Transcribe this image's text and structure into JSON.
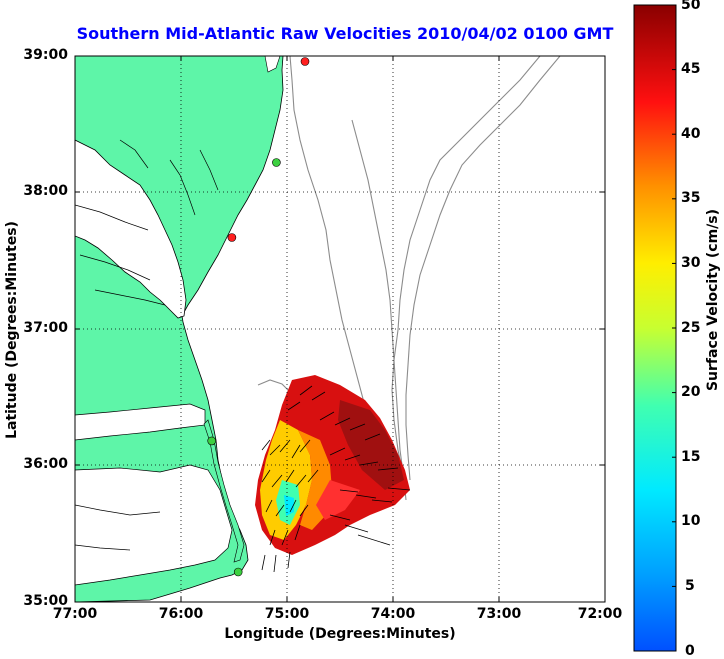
{
  "title": "Southern Mid-Atlantic Raw Velocities 2010/04/02 0100 GMT",
  "axes": {
    "xlabel": "Longitude (Degrees:Minutes)",
    "ylabel": "Latitude (Degrees:Minutes)",
    "x_ticks": [
      "77:00",
      "76:00",
      "75:00",
      "74:00",
      "73:00",
      "72:00"
    ],
    "y_ticks": [
      "39:00",
      "38:00",
      "37:00",
      "36:00",
      "35:00"
    ],
    "xlim": [
      -77,
      -72
    ],
    "ylim": [
      35,
      39
    ],
    "grid": true
  },
  "colorbar": {
    "label": "Surface Velocity (cm/s)",
    "ticks": [
      "50",
      "45",
      "40",
      "35",
      "30",
      "25",
      "20",
      "15",
      "10",
      "5",
      "0"
    ],
    "range": [
      0,
      50
    ],
    "colormap": "jet"
  },
  "colors": {
    "land": "#5ef5a8",
    "title": "#0000ff",
    "station_active": "#3cd040",
    "station_inactive": "#ff2020",
    "bathymetry": "#8c8c8c"
  },
  "stations": [
    {
      "lon": -74.83,
      "lat": 38.96,
      "status": "inactive"
    },
    {
      "lon": -75.1,
      "lat": 38.22,
      "status": "active"
    },
    {
      "lon": -75.52,
      "lat": 37.67,
      "status": "inactive"
    },
    {
      "lon": -75.71,
      "lat": 36.18,
      "status": "active"
    },
    {
      "lon": -75.46,
      "lat": 35.22,
      "status": "active"
    }
  ]
}
